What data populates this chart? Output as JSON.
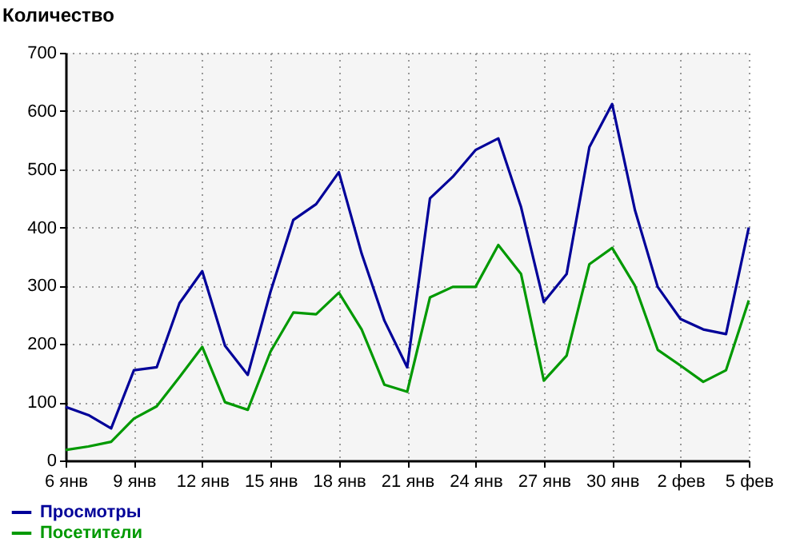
{
  "chart_data": {
    "type": "line",
    "ylabel": "Количество",
    "categories": [
      "6 янв",
      null,
      null,
      "9 янв",
      null,
      null,
      "12 янв",
      null,
      null,
      "15 янв",
      null,
      null,
      "18 янв",
      null,
      null,
      "21 янв",
      null,
      null,
      "24 янв",
      null,
      null,
      "27 янв",
      null,
      null,
      "30 янв",
      null,
      null,
      "2 фев",
      null,
      null,
      "5 фев"
    ],
    "series": [
      {
        "name": "Просмотры",
        "color": "#000099",
        "values": [
          92,
          78,
          55,
          155,
          160,
          270,
          325,
          197,
          147,
          290,
          413,
          440,
          495,
          355,
          240,
          160,
          450,
          487,
          533,
          553,
          435,
          272,
          320,
          538,
          612,
          430,
          298,
          243,
          225,
          217,
          400
        ]
      },
      {
        "name": "Посетители",
        "color": "#009900",
        "values": [
          18,
          24,
          32,
          72,
          93,
          143,
          195,
          100,
          87,
          187,
          254,
          251,
          288,
          225,
          130,
          118,
          280,
          298,
          298,
          370,
          320,
          137,
          180,
          337,
          365,
          300,
          190,
          163,
          135,
          155,
          275
        ]
      }
    ],
    "ylim": [
      0,
      700
    ],
    "yticks": [
      0,
      100,
      200,
      300,
      400,
      500,
      600,
      700
    ],
    "grid": true,
    "legend": "bottom left",
    "marker": "none",
    "line_style": "solid"
  }
}
